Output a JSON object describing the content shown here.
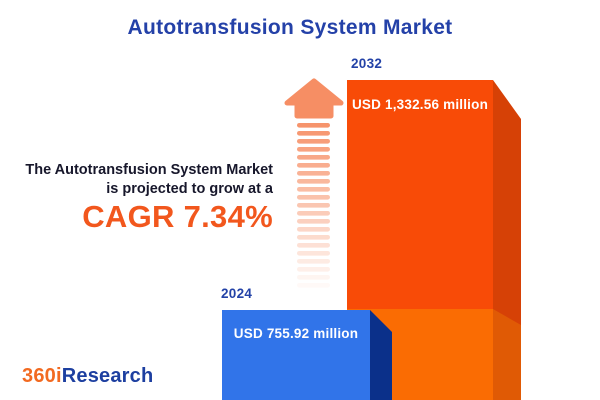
{
  "title": "Autotransfusion System Market",
  "annotation": {
    "line1": "The Autotransfusion System Market",
    "line2": "is projected to grow at a",
    "cagr": "CAGR 7.34%"
  },
  "bars": {
    "b2024": {
      "year": "2024",
      "value_label": "USD 755.92 million"
    },
    "b2032": {
      "year": "2032",
      "value_label": "USD 1,332.56 million"
    }
  },
  "logo": {
    "part1": "360i",
    "part2": "Research"
  },
  "colors": {
    "title_blue": "#2441a8",
    "year_blue": "#2342a7",
    "annotation_dark": "#17172b",
    "cagr_orange": "#f2571d",
    "bar2032_front_top": "#f84b07",
    "bar2032_front_bottom": "#fa6c03",
    "bar2032_side_top": "#d64106",
    "bar2032_side_bottom": "#e05a05",
    "bar2024_front": "#3174e9",
    "bar2024_side": "#0b308a",
    "arrow_salmon": "#f68e64",
    "logo_orange": "#f26a21",
    "logo_blue": "#1d3fa0"
  },
  "chart_data": {
    "type": "bar",
    "title": "Autotransfusion System Market",
    "categories": [
      "2024",
      "2032"
    ],
    "values": [
      755.92,
      1332.56
    ],
    "unit": "USD million",
    "value_labels": [
      "USD 755.92 million",
      "USD 1,332.56 million"
    ],
    "cagr_percent": 7.34,
    "annotation_text": "The Autotransfusion System Market is projected to grow at a CAGR 7.34%",
    "legend": false,
    "axes_shown": false,
    "orientation": "vertical",
    "style": "3d-infographic"
  },
  "arrow": {
    "stripe_count": 21
  }
}
